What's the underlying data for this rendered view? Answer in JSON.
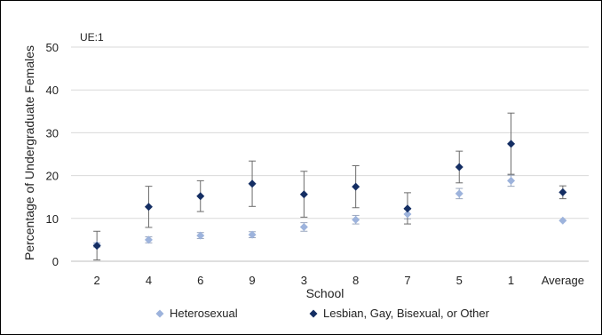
{
  "chart_data": {
    "type": "scatter",
    "annotation": "UE:1",
    "xlabel": "School",
    "ylabel": "Percentage of Undergraduate Females",
    "ylim": [
      0,
      50
    ],
    "yticks": [
      0,
      10,
      20,
      30,
      40,
      50
    ],
    "grid": true,
    "legend_position": "bottom",
    "categories": [
      "2",
      "4",
      "6",
      "9",
      "3",
      "8",
      "7",
      "5",
      "1",
      "Average"
    ],
    "series": [
      {
        "name": "Heterosexual",
        "color": "#9db3dc",
        "marker": "diamond",
        "values": [
          3.8,
          5.0,
          6.0,
          6.2,
          8.0,
          9.7,
          11.0,
          15.8,
          18.8,
          9.5
        ],
        "error_low": [
          3.3,
          4.3,
          5.3,
          5.5,
          7.0,
          8.7,
          9.9,
          14.6,
          17.5,
          9.5
        ],
        "error_high": [
          4.3,
          5.7,
          6.7,
          6.9,
          9.0,
          10.7,
          12.1,
          17.0,
          20.1,
          9.5
        ]
      },
      {
        "name": "Lesbian, Gay, Bisexual, or Other",
        "color": "#142e63",
        "marker": "diamond",
        "values": [
          3.6,
          12.7,
          15.2,
          18.1,
          15.6,
          17.4,
          12.3,
          22.0,
          27.4,
          16.1
        ],
        "error_low": [
          0.3,
          7.9,
          11.6,
          12.8,
          10.3,
          12.5,
          8.7,
          18.3,
          20.3,
          14.6
        ],
        "error_high": [
          7.0,
          17.5,
          18.8,
          23.4,
          21.0,
          22.3,
          16.0,
          25.7,
          34.6,
          17.6
        ]
      }
    ]
  }
}
